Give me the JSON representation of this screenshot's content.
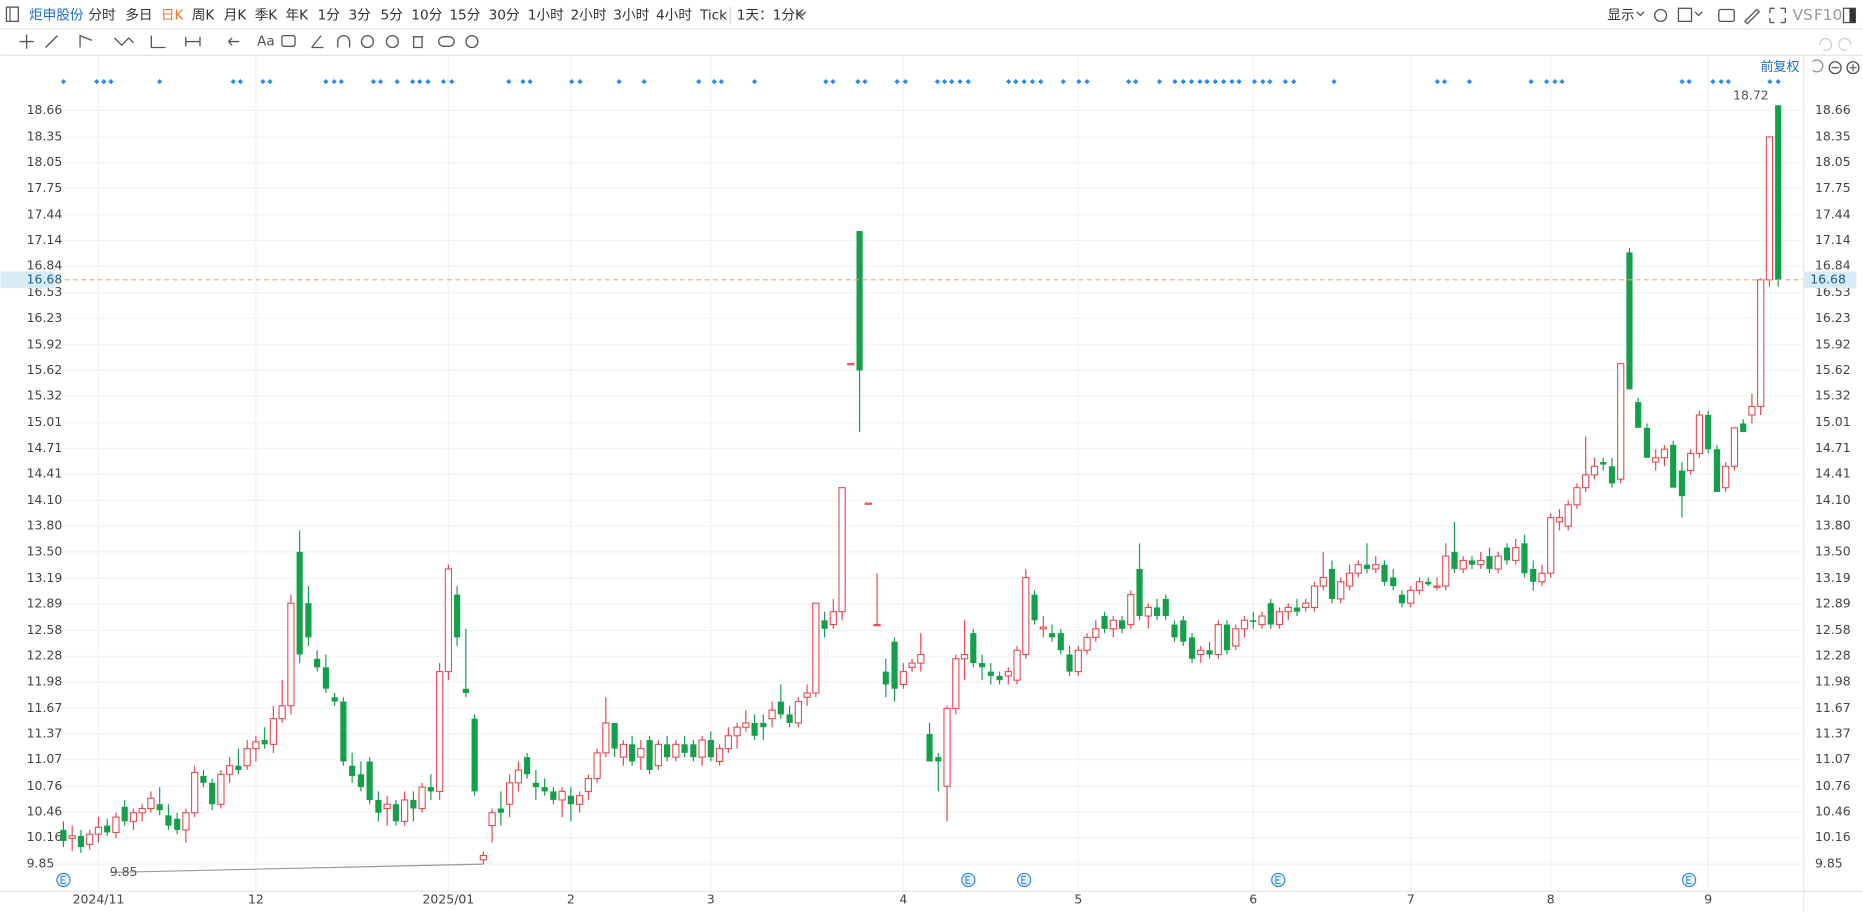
{
  "toolbar": {
    "stock": "炬申股份",
    "periods": [
      "分时",
      "多日",
      "日K",
      "周K",
      "月K",
      "季K",
      "年K",
      "1分",
      "3分",
      "5分",
      "10分",
      "15分",
      "30分",
      "1小时",
      "2小时",
      "3小时",
      "4小时",
      "Tick"
    ],
    "selected_index": 2,
    "interval": "1天：1分K",
    "display": "显示",
    "vs": "VS",
    "f10": "F10",
    "text_tool": "Aa"
  },
  "chart_data": {
    "type": "candlestick",
    "adjust": "前复权",
    "up_color": "#e8474c",
    "down_color": "#14a04a",
    "grid": true,
    "ylim": [
      9.54,
      19.09
    ],
    "yticks": [
      9.85,
      10.16,
      10.46,
      10.76,
      11.07,
      11.37,
      11.67,
      11.98,
      12.28,
      12.58,
      12.89,
      13.19,
      {
        "value": 13.5,
        "label": "13.50"
      },
      {
        "value": 13.8,
        "label": "13.80"
      },
      {
        "value": 14.1,
        "label": "14.10"
      },
      14.41,
      14.71,
      15.01,
      15.32,
      15.62,
      15.92,
      16.23,
      16.53,
      16.84,
      17.14,
      17.44,
      17.75,
      18.05,
      18.35,
      18.66
    ],
    "last_price": 16.68,
    "last_price_color": "#f2a07e",
    "max_label": 18.72,
    "min_label": 9.85,
    "categories": [
      null,
      null,
      null,
      null,
      "2024/11",
      null,
      null,
      null,
      null,
      null,
      null,
      null,
      null,
      null,
      null,
      null,
      null,
      null,
      null,
      null,
      null,
      null,
      "12",
      null,
      null,
      null,
      null,
      null,
      null,
      null,
      null,
      null,
      null,
      null,
      null,
      null,
      null,
      null,
      null,
      null,
      null,
      null,
      null,
      null,
      "2025/01",
      null,
      null,
      null,
      null,
      null,
      null,
      null,
      null,
      null,
      null,
      null,
      null,
      null,
      "2",
      null,
      null,
      null,
      null,
      null,
      null,
      null,
      null,
      null,
      null,
      null,
      null,
      null,
      null,
      null,
      "3",
      null,
      null,
      null,
      null,
      null,
      null,
      null,
      null,
      null,
      null,
      null,
      null,
      null,
      null,
      null,
      null,
      null,
      null,
      null,
      null,
      null,
      "4",
      null,
      null,
      null,
      null,
      null,
      null,
      null,
      null,
      null,
      null,
      null,
      null,
      null,
      null,
      null,
      null,
      null,
      null,
      null,
      "5",
      null,
      null,
      null,
      null,
      null,
      null,
      null,
      null,
      null,
      null,
      null,
      null,
      null,
      null,
      null,
      null,
      null,
      null,
      null,
      "6",
      null,
      null,
      null,
      null,
      null,
      null,
      null,
      null,
      null,
      null,
      null,
      null,
      null,
      null,
      null,
      null,
      null,
      "7",
      null,
      null,
      null,
      null,
      null,
      null,
      null,
      null,
      null,
      null,
      null,
      null,
      null,
      null,
      null,
      "8",
      null,
      null,
      null,
      null,
      null,
      null,
      null,
      null,
      null,
      null,
      null,
      null,
      null,
      null,
      null,
      null,
      null,
      "9",
      null,
      null,
      null,
      null,
      null,
      null,
      null,
      null
    ],
    "ohlc": [
      [
        10.25,
        10.35,
        10.05,
        10.12
      ],
      [
        10.15,
        10.3,
        10.0,
        10.18
      ],
      [
        10.18,
        10.25,
        9.98,
        10.05
      ],
      [
        10.08,
        10.25,
        10.02,
        10.2
      ],
      [
        10.2,
        10.4,
        10.1,
        10.28
      ],
      [
        10.3,
        10.38,
        10.18,
        10.22
      ],
      [
        10.22,
        10.45,
        10.15,
        10.4
      ],
      [
        10.52,
        10.6,
        10.3,
        10.35
      ],
      [
        10.35,
        10.5,
        10.25,
        10.45
      ],
      [
        10.45,
        10.55,
        10.35,
        10.5
      ],
      [
        10.5,
        10.7,
        10.45,
        10.62
      ],
      [
        10.55,
        10.75,
        10.42,
        10.48
      ],
      [
        10.42,
        10.55,
        10.25,
        10.3
      ],
      [
        10.38,
        10.45,
        10.2,
        10.25
      ],
      [
        10.25,
        10.5,
        10.1,
        10.45
      ],
      [
        10.45,
        11.0,
        10.4,
        10.92
      ],
      [
        10.88,
        10.95,
        10.75,
        10.8
      ],
      [
        10.8,
        10.85,
        10.48,
        10.55
      ],
      [
        10.55,
        10.95,
        10.5,
        10.9
      ],
      [
        10.9,
        11.1,
        10.8,
        11.0
      ],
      [
        11.0,
        11.2,
        10.9,
        10.95
      ],
      [
        11.0,
        11.3,
        10.95,
        11.2
      ],
      [
        11.2,
        11.35,
        11.05,
        11.28
      ],
      [
        11.3,
        11.45,
        11.2,
        11.25
      ],
      [
        11.25,
        11.7,
        11.15,
        11.55
      ],
      [
        11.55,
        12.0,
        11.5,
        11.7
      ],
      [
        11.7,
        13.0,
        11.6,
        12.9
      ],
      [
        13.5,
        13.75,
        12.2,
        12.3
      ],
      [
        12.9,
        13.1,
        12.4,
        12.5
      ],
      [
        12.25,
        12.35,
        12.1,
        12.15
      ],
      [
        12.15,
        12.3,
        11.85,
        11.9
      ],
      [
        11.8,
        11.85,
        11.7,
        11.75
      ],
      [
        11.75,
        11.8,
        11.0,
        11.05
      ],
      [
        11.0,
        11.15,
        10.8,
        10.88
      ],
      [
        10.9,
        11.05,
        10.7,
        10.75
      ],
      [
        11.05,
        11.1,
        10.55,
        10.6
      ],
      [
        10.6,
        10.7,
        10.35,
        10.45
      ],
      [
        10.5,
        10.65,
        10.3,
        10.55
      ],
      [
        10.55,
        10.6,
        10.3,
        10.35
      ],
      [
        10.35,
        10.7,
        10.3,
        10.6
      ],
      [
        10.6,
        10.7,
        10.35,
        10.5
      ],
      [
        10.5,
        10.8,
        10.45,
        10.75
      ],
      [
        10.75,
        10.9,
        10.6,
        10.7
      ],
      [
        10.7,
        12.2,
        10.6,
        12.1
      ],
      [
        12.1,
        13.35,
        12.0,
        13.3
      ],
      [
        13.0,
        13.1,
        12.4,
        12.5
      ],
      [
        11.9,
        12.6,
        11.8,
        11.85
      ],
      [
        11.55,
        11.6,
        10.65,
        10.7
      ],
      [
        9.9,
        10.0,
        9.85,
        9.95
      ],
      [
        10.3,
        10.5,
        10.1,
        10.45
      ],
      [
        10.5,
        10.7,
        10.3,
        10.45
      ],
      [
        10.55,
        10.9,
        10.4,
        10.8
      ],
      [
        10.8,
        11.05,
        10.7,
        10.95
      ],
      [
        11.1,
        11.15,
        10.85,
        10.9
      ],
      [
        10.8,
        10.95,
        10.6,
        10.75
      ],
      [
        10.75,
        10.85,
        10.65,
        10.7
      ],
      [
        10.7,
        10.75,
        10.55,
        10.6
      ],
      [
        10.6,
        10.75,
        10.4,
        10.7
      ],
      [
        10.65,
        10.75,
        10.35,
        10.55
      ],
      [
        10.55,
        10.7,
        10.45,
        10.65
      ],
      [
        10.7,
        10.9,
        10.6,
        10.85
      ],
      [
        10.85,
        11.2,
        10.8,
        11.15
      ],
      [
        11.15,
        11.8,
        11.1,
        11.5
      ],
      [
        11.5,
        11.5,
        11.1,
        11.2
      ],
      [
        11.1,
        11.3,
        11.0,
        11.25
      ],
      [
        11.25,
        11.35,
        11.0,
        11.05
      ],
      [
        11.1,
        11.3,
        10.95,
        11.2
      ],
      [
        11.3,
        11.35,
        10.9,
        10.95
      ],
      [
        11.0,
        11.3,
        10.95,
        11.25
      ],
      [
        11.25,
        11.35,
        11.05,
        11.1
      ],
      [
        11.1,
        11.3,
        11.05,
        11.25
      ],
      [
        11.25,
        11.35,
        11.1,
        11.15
      ],
      [
        11.25,
        11.3,
        11.05,
        11.1
      ],
      [
        11.1,
        11.35,
        11.0,
        11.3
      ],
      [
        11.3,
        11.4,
        11.05,
        11.1
      ],
      [
        11.05,
        11.25,
        11.0,
        11.2
      ],
      [
        11.2,
        11.45,
        11.15,
        11.35
      ],
      [
        11.35,
        11.5,
        11.2,
        11.45
      ],
      [
        11.45,
        11.65,
        11.4,
        11.5
      ],
      [
        11.5,
        11.6,
        11.3,
        11.35
      ],
      [
        11.5,
        11.6,
        11.3,
        11.45
      ],
      [
        11.55,
        11.75,
        11.45,
        11.65
      ],
      [
        11.75,
        11.95,
        11.55,
        11.6
      ],
      [
        11.6,
        11.7,
        11.45,
        11.5
      ],
      [
        11.5,
        11.8,
        11.45,
        11.75
      ],
      [
        11.8,
        11.95,
        11.7,
        11.85
      ],
      [
        11.85,
        12.9,
        11.8,
        12.9
      ],
      [
        12.7,
        12.8,
        12.5,
        12.6
      ],
      [
        12.65,
        12.95,
        12.6,
        12.8
      ],
      [
        12.8,
        14.25,
        12.7,
        14.25
      ],
      [
        15.7,
        15.7,
        15.7,
        15.7
      ],
      [
        17.25,
        17.25,
        14.9,
        15.62
      ],
      [
        14.07,
        14.07,
        14.07,
        14.07
      ],
      [
        12.65,
        13.25,
        12.65,
        12.65
      ],
      [
        12.1,
        12.25,
        11.8,
        11.95
      ],
      [
        12.45,
        12.5,
        11.75,
        11.9
      ],
      [
        11.95,
        12.2,
        11.9,
        12.1
      ],
      [
        12.15,
        12.25,
        12.1,
        12.2
      ],
      [
        12.2,
        12.55,
        12.1,
        12.3
      ],
      [
        11.37,
        11.5,
        11.05,
        11.05
      ],
      [
        11.1,
        11.15,
        10.7,
        11.05
      ],
      [
        10.76,
        11.7,
        10.35,
        11.67
      ],
      [
        11.67,
        12.3,
        11.6,
        12.25
      ],
      [
        12.25,
        12.7,
        12.0,
        12.3
      ],
      [
        12.55,
        12.6,
        12.15,
        12.2
      ],
      [
        12.2,
        12.3,
        12.0,
        12.15
      ],
      [
        12.1,
        12.2,
        11.95,
        12.05
      ],
      [
        12.05,
        12.1,
        11.95,
        12.0
      ],
      [
        12.05,
        12.15,
        11.95,
        12.1
      ],
      [
        12.0,
        12.4,
        11.95,
        12.35
      ],
      [
        12.3,
        13.3,
        12.25,
        13.2
      ],
      [
        13.0,
        13.05,
        12.65,
        12.7
      ],
      [
        12.6,
        12.75,
        12.5,
        12.62
      ],
      [
        12.55,
        12.65,
        12.45,
        12.5
      ],
      [
        12.55,
        12.6,
        12.3,
        12.35
      ],
      [
        12.3,
        12.4,
        12.05,
        12.1
      ],
      [
        12.1,
        12.4,
        12.05,
        12.35
      ],
      [
        12.35,
        12.55,
        12.3,
        12.5
      ],
      [
        12.5,
        12.7,
        12.45,
        12.6
      ],
      [
        12.75,
        12.8,
        12.55,
        12.6
      ],
      [
        12.6,
        12.75,
        12.5,
        12.7
      ],
      [
        12.7,
        12.75,
        12.55,
        12.6
      ],
      [
        12.65,
        13.05,
        12.6,
        13.0
      ],
      [
        13.3,
        13.6,
        12.7,
        12.75
      ],
      [
        12.75,
        12.9,
        12.6,
        12.85
      ],
      [
        12.85,
        12.95,
        12.7,
        12.75
      ],
      [
        12.95,
        13.0,
        12.7,
        12.75
      ],
      [
        12.65,
        12.7,
        12.45,
        12.5
      ],
      [
        12.7,
        12.75,
        12.4,
        12.45
      ],
      [
        12.5,
        12.55,
        12.2,
        12.25
      ],
      [
        12.3,
        12.4,
        12.2,
        12.35
      ],
      [
        12.35,
        12.45,
        12.25,
        12.3
      ],
      [
        12.3,
        12.7,
        12.25,
        12.65
      ],
      [
        12.65,
        12.7,
        12.3,
        12.35
      ],
      [
        12.4,
        12.65,
        12.35,
        12.6
      ],
      [
        12.6,
        12.75,
        12.5,
        12.7
      ],
      [
        12.7,
        12.8,
        12.6,
        12.68
      ],
      [
        12.65,
        12.8,
        12.6,
        12.75
      ],
      [
        12.9,
        12.95,
        12.6,
        12.65
      ],
      [
        12.65,
        12.85,
        12.6,
        12.8
      ],
      [
        12.8,
        12.9,
        12.7,
        12.85
      ],
      [
        12.85,
        12.95,
        12.75,
        12.8
      ],
      [
        12.85,
        12.95,
        12.8,
        12.9
      ],
      [
        12.85,
        13.15,
        12.8,
        13.1
      ],
      [
        13.1,
        13.5,
        13.05,
        13.2
      ],
      [
        13.3,
        13.4,
        12.9,
        12.95
      ],
      [
        12.95,
        13.2,
        12.9,
        13.15
      ],
      [
        13.1,
        13.35,
        13.05,
        13.25
      ],
      [
        13.25,
        13.4,
        13.2,
        13.35
      ],
      [
        13.35,
        13.6,
        13.25,
        13.3
      ],
      [
        13.3,
        13.45,
        13.25,
        13.35
      ],
      [
        13.35,
        13.4,
        13.1,
        13.15
      ],
      [
        13.2,
        13.3,
        13.05,
        13.1
      ],
      [
        13.0,
        13.05,
        12.85,
        12.9
      ],
      [
        12.9,
        13.1,
        12.85,
        13.05
      ],
      [
        13.05,
        13.2,
        13.0,
        13.15
      ],
      [
        13.15,
        13.2,
        13.1,
        13.12
      ],
      [
        13.1,
        13.2,
        13.05,
        13.1
      ],
      [
        13.1,
        13.6,
        13.05,
        13.45
      ],
      [
        13.5,
        13.85,
        13.25,
        13.3
      ],
      [
        13.3,
        13.45,
        13.25,
        13.4
      ],
      [
        13.4,
        13.45,
        13.3,
        13.35
      ],
      [
        13.35,
        13.5,
        13.3,
        13.4
      ],
      [
        13.45,
        13.55,
        13.25,
        13.3
      ],
      [
        13.3,
        13.5,
        13.25,
        13.45
      ],
      [
        13.55,
        13.6,
        13.35,
        13.4
      ],
      [
        13.4,
        13.65,
        13.35,
        13.55
      ],
      [
        13.6,
        13.7,
        13.2,
        13.25
      ],
      [
        13.3,
        13.4,
        13.05,
        13.15
      ],
      [
        13.15,
        13.35,
        13.1,
        13.25
      ],
      [
        13.25,
        13.95,
        13.2,
        13.9
      ],
      [
        13.85,
        14.0,
        13.75,
        13.9
      ],
      [
        13.8,
        14.1,
        13.75,
        14.05
      ],
      [
        14.05,
        14.3,
        14.0,
        14.25
      ],
      [
        14.25,
        14.85,
        14.2,
        14.4
      ],
      [
        14.4,
        14.6,
        14.35,
        14.5
      ],
      [
        14.55,
        14.6,
        14.45,
        14.52
      ],
      [
        14.5,
        14.6,
        14.25,
        14.3
      ],
      [
        14.35,
        15.7,
        14.3,
        15.7
      ],
      [
        17.0,
        17.05,
        15.4,
        15.4
      ],
      [
        15.25,
        15.3,
        14.95,
        14.95
      ],
      [
        14.95,
        15.0,
        14.6,
        14.6
      ],
      [
        14.55,
        14.7,
        14.45,
        14.6
      ],
      [
        14.6,
        14.75,
        14.5,
        14.7
      ],
      [
        14.75,
        14.8,
        14.25,
        14.25
      ],
      [
        14.45,
        14.55,
        13.9,
        14.15
      ],
      [
        14.45,
        14.7,
        14.4,
        14.65
      ],
      [
        14.65,
        15.15,
        14.6,
        15.1
      ],
      [
        15.1,
        15.15,
        14.65,
        14.7
      ],
      [
        14.7,
        14.75,
        14.2,
        14.2
      ],
      [
        14.25,
        14.55,
        14.2,
        14.5
      ],
      [
        14.5,
        14.95,
        14.45,
        14.95
      ],
      [
        15.0,
        15.05,
        14.9,
        14.9
      ],
      [
        15.1,
        15.35,
        15.0,
        15.2
      ],
      [
        15.2,
        16.7,
        15.1,
        16.68
      ],
      [
        16.68,
        18.35,
        16.6,
        18.35
      ],
      [
        18.72,
        18.72,
        16.6,
        16.68
      ]
    ]
  }
}
